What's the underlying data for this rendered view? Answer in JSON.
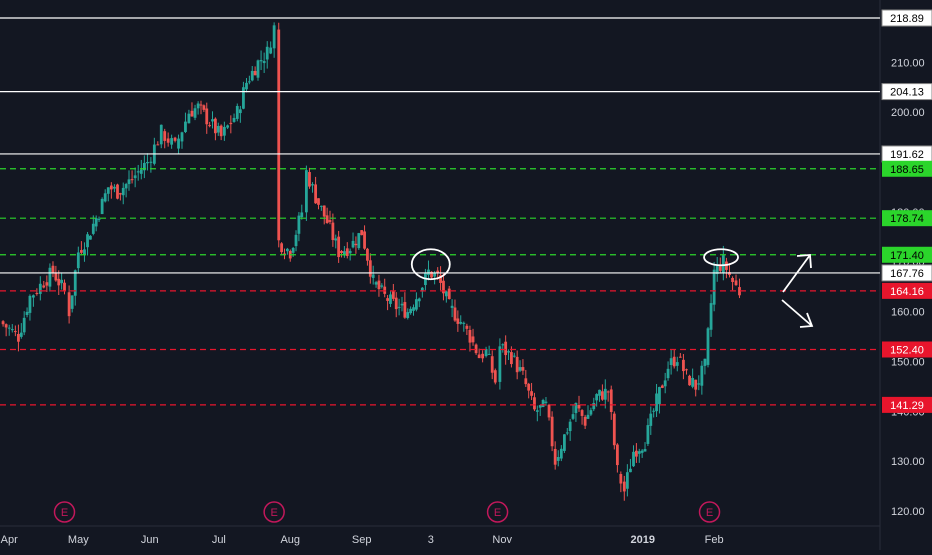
{
  "colors": {
    "background": "#131722",
    "up": "#26a69a",
    "down": "#ef5350",
    "axis_text": "#d1d4dc",
    "white_level": "#ffffff",
    "green_level": "#2bd52b",
    "red_level": "#e8152c",
    "event": "#c2185b"
  },
  "chart_data": {
    "type": "candlestick",
    "y_ticks": [
      120.0,
      130.0,
      140.0,
      150.0,
      160.0,
      170.0,
      180.0,
      190.0,
      200.0,
      210.0
    ],
    "ylim": [
      118.2,
      222.1
    ],
    "x_labels": [
      {
        "text": "Apr",
        "date": "2018-04-01"
      },
      {
        "text": "May",
        "date": "2018-05-01"
      },
      {
        "text": "Jun",
        "date": "2018-06-01"
      },
      {
        "text": "Jul",
        "date": "2018-07-01"
      },
      {
        "text": "Aug",
        "date": "2018-08-01"
      },
      {
        "text": "Sep",
        "date": "2018-09-01"
      },
      {
        "text": "3",
        "date": "2018-10-01"
      },
      {
        "text": "Nov",
        "date": "2018-11-01"
      },
      {
        "text": "2019",
        "date": "2019-01-01",
        "bold": true
      },
      {
        "text": "Feb",
        "date": "2019-02-01"
      }
    ],
    "xlim": [
      "2018-03-28",
      "2019-04-14"
    ],
    "levels": [
      {
        "value": 218.89,
        "label": "218.89",
        "kind": "white"
      },
      {
        "value": 204.13,
        "label": "204.13",
        "kind": "white"
      },
      {
        "value": 191.62,
        "label": "191.62",
        "kind": "white"
      },
      {
        "value": 188.65,
        "label": "188.65",
        "kind": "green"
      },
      {
        "value": 178.74,
        "label": "178.74",
        "kind": "green"
      },
      {
        "value": 171.4,
        "label": "171.40",
        "kind": "green"
      },
      {
        "value": 167.76,
        "label": "167.76",
        "kind": "white"
      },
      {
        "value": 164.16,
        "label": "164.16",
        "kind": "red"
      },
      {
        "value": 152.4,
        "label": "152.40",
        "kind": "red"
      },
      {
        "value": 141.29,
        "label": "141.29",
        "kind": "red"
      }
    ],
    "events": [
      {
        "label": "E",
        "date": "2018-04-25"
      },
      {
        "label": "E",
        "date": "2018-07-25"
      },
      {
        "label": "E",
        "date": "2018-10-30"
      },
      {
        "label": "E",
        "date": "2019-01-30"
      }
    ],
    "price_path": [
      [
        "2018-03-28",
        158
      ],
      [
        "2018-04-05",
        155
      ],
      [
        "2018-04-10",
        163
      ],
      [
        "2018-04-16",
        166
      ],
      [
        "2018-04-20",
        168
      ],
      [
        "2018-04-25",
        164
      ],
      [
        "2018-04-27",
        160
      ],
      [
        "2018-05-01",
        172
      ],
      [
        "2018-05-05",
        175
      ],
      [
        "2018-05-10",
        180
      ],
      [
        "2018-05-14",
        185
      ],
      [
        "2018-05-18",
        184
      ],
      [
        "2018-05-23",
        186
      ],
      [
        "2018-05-31",
        190
      ],
      [
        "2018-06-06",
        196
      ],
      [
        "2018-06-12",
        193
      ],
      [
        "2018-06-18",
        200
      ],
      [
        "2018-06-22",
        201
      ],
      [
        "2018-06-27",
        198
      ],
      [
        "2018-07-02",
        195
      ],
      [
        "2018-07-09",
        200
      ],
      [
        "2018-07-13",
        206
      ],
      [
        "2018-07-18",
        210
      ],
      [
        "2018-07-22",
        212
      ],
      [
        "2018-07-25",
        217
      ],
      [
        "2018-07-27",
        174
      ],
      [
        "2018-08-01",
        172
      ],
      [
        "2018-08-06",
        180
      ],
      [
        "2018-08-08",
        188
      ],
      [
        "2018-08-12",
        183
      ],
      [
        "2018-08-17",
        178
      ],
      [
        "2018-08-22",
        172
      ],
      [
        "2018-08-27",
        173
      ],
      [
        "2018-09-01",
        176
      ],
      [
        "2018-09-06",
        166
      ],
      [
        "2018-09-11",
        163
      ],
      [
        "2018-09-16",
        161
      ],
      [
        "2018-09-21",
        160
      ],
      [
        "2018-09-26",
        164
      ],
      [
        "2018-09-30",
        168
      ],
      [
        "2018-10-04",
        167
      ],
      [
        "2018-10-09",
        161
      ],
      [
        "2018-10-14",
        158
      ],
      [
        "2018-10-18",
        155
      ],
      [
        "2018-10-22",
        151
      ],
      [
        "2018-10-25",
        152
      ],
      [
        "2018-10-29",
        146
      ],
      [
        "2018-10-31",
        153
      ],
      [
        "2018-11-05",
        151
      ],
      [
        "2018-11-10",
        147
      ],
      [
        "2018-11-15",
        140
      ],
      [
        "2018-11-20",
        141
      ],
      [
        "2018-11-24",
        130
      ],
      [
        "2018-11-28",
        135
      ],
      [
        "2018-12-03",
        141
      ],
      [
        "2018-12-07",
        138
      ],
      [
        "2018-12-12",
        143
      ],
      [
        "2018-12-17",
        144
      ],
      [
        "2018-12-21",
        128
      ],
      [
        "2018-12-24",
        124
      ],
      [
        "2018-12-28",
        132
      ],
      [
        "2019-01-02",
        134
      ],
      [
        "2019-01-07",
        142
      ],
      [
        "2019-01-12",
        149
      ],
      [
        "2019-01-16",
        151
      ],
      [
        "2019-01-20",
        147
      ],
      [
        "2019-01-24",
        145
      ],
      [
        "2019-01-28",
        149
      ],
      [
        "2019-02-01",
        168
      ],
      [
        "2019-02-05",
        170
      ],
      [
        "2019-02-09",
        166
      ],
      [
        "2019-02-12",
        164
      ]
    ]
  }
}
